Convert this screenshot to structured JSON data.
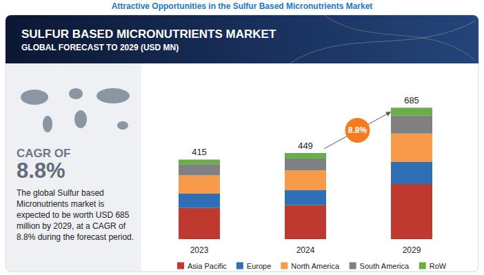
{
  "header": "Attractive Opportunities in the Sulfur Based Micronutrients Market",
  "side_panel": {
    "cagr_caption": "CAGR OF",
    "cagr_value": "8.8%",
    "summary": "The global Sulfur based Micronutrients market is expected to be worth USD 685 million by 2029, at a CAGR of 8.8% during the forecast period."
  },
  "chart_data": {
    "type": "bar",
    "title": "SULFUR BASED MICRONUTRIENTS MARKET",
    "subtitle": "GLOBAL FORECAST TO 2029 (USD MN)",
    "categories": [
      "2023",
      "2024",
      "2029"
    ],
    "series": [
      {
        "name": "Asia Pacific",
        "color": "#c0392f",
        "values": [
          162,
          177,
          287
        ]
      },
      {
        "name": "Europe",
        "color": "#2f6fb5",
        "values": [
          75,
          78,
          115
        ]
      },
      {
        "name": "North America",
        "color": "#f79a4a",
        "values": [
          95,
          103,
          148
        ]
      },
      {
        "name": "South America",
        "color": "#808080",
        "values": [
          58,
          62,
          94
        ]
      },
      {
        "name": "RoW",
        "color": "#6aae4a",
        "values": [
          25,
          29,
          41
        ]
      }
    ],
    "totals": [
      415,
      449,
      685
    ],
    "stacked": true,
    "legend": "bottom",
    "tick_labels": "x",
    "grid": false,
    "annotations": [
      {
        "text": "8.8%",
        "from": "2024",
        "to": "2029"
      }
    ]
  }
}
